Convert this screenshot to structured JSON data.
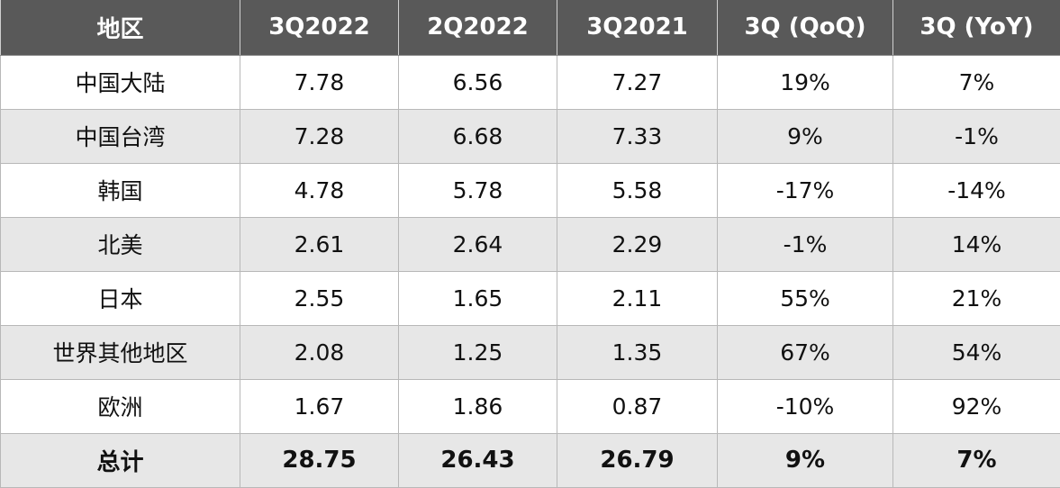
{
  "table": {
    "headers": [
      "地区",
      "3Q2022",
      "2Q2022",
      "3Q2021",
      "3Q (QoQ)",
      "3Q (YoY)"
    ],
    "rows": [
      [
        "中国大陆",
        "7.78",
        "6.56",
        "7.27",
        "19%",
        "7%"
      ],
      [
        "中国台湾",
        "7.28",
        "6.68",
        "7.33",
        "9%",
        "-1%"
      ],
      [
        "韩国",
        "4.78",
        "5.78",
        "5.58",
        "-17%",
        "-14%"
      ],
      [
        "北美",
        "2.61",
        "2.64",
        "2.29",
        "-1%",
        "14%"
      ],
      [
        "日本",
        "2.55",
        "1.65",
        "2.11",
        "55%",
        "21%"
      ],
      [
        "世界其他地区",
        "2.08",
        "1.25",
        "1.35",
        "67%",
        "54%"
      ],
      [
        "欧洲",
        "1.67",
        "1.86",
        "0.87",
        "-10%",
        "92%"
      ]
    ],
    "total": [
      "总计",
      "28.75",
      "26.43",
      "26.79",
      "9%",
      "7%"
    ]
  },
  "colors": {
    "header_bg": "#595959",
    "header_text": "#ffffff",
    "row_alt_bg": "#e7e7e7",
    "row_bg": "#ffffff",
    "border": "#b8b8b8"
  }
}
